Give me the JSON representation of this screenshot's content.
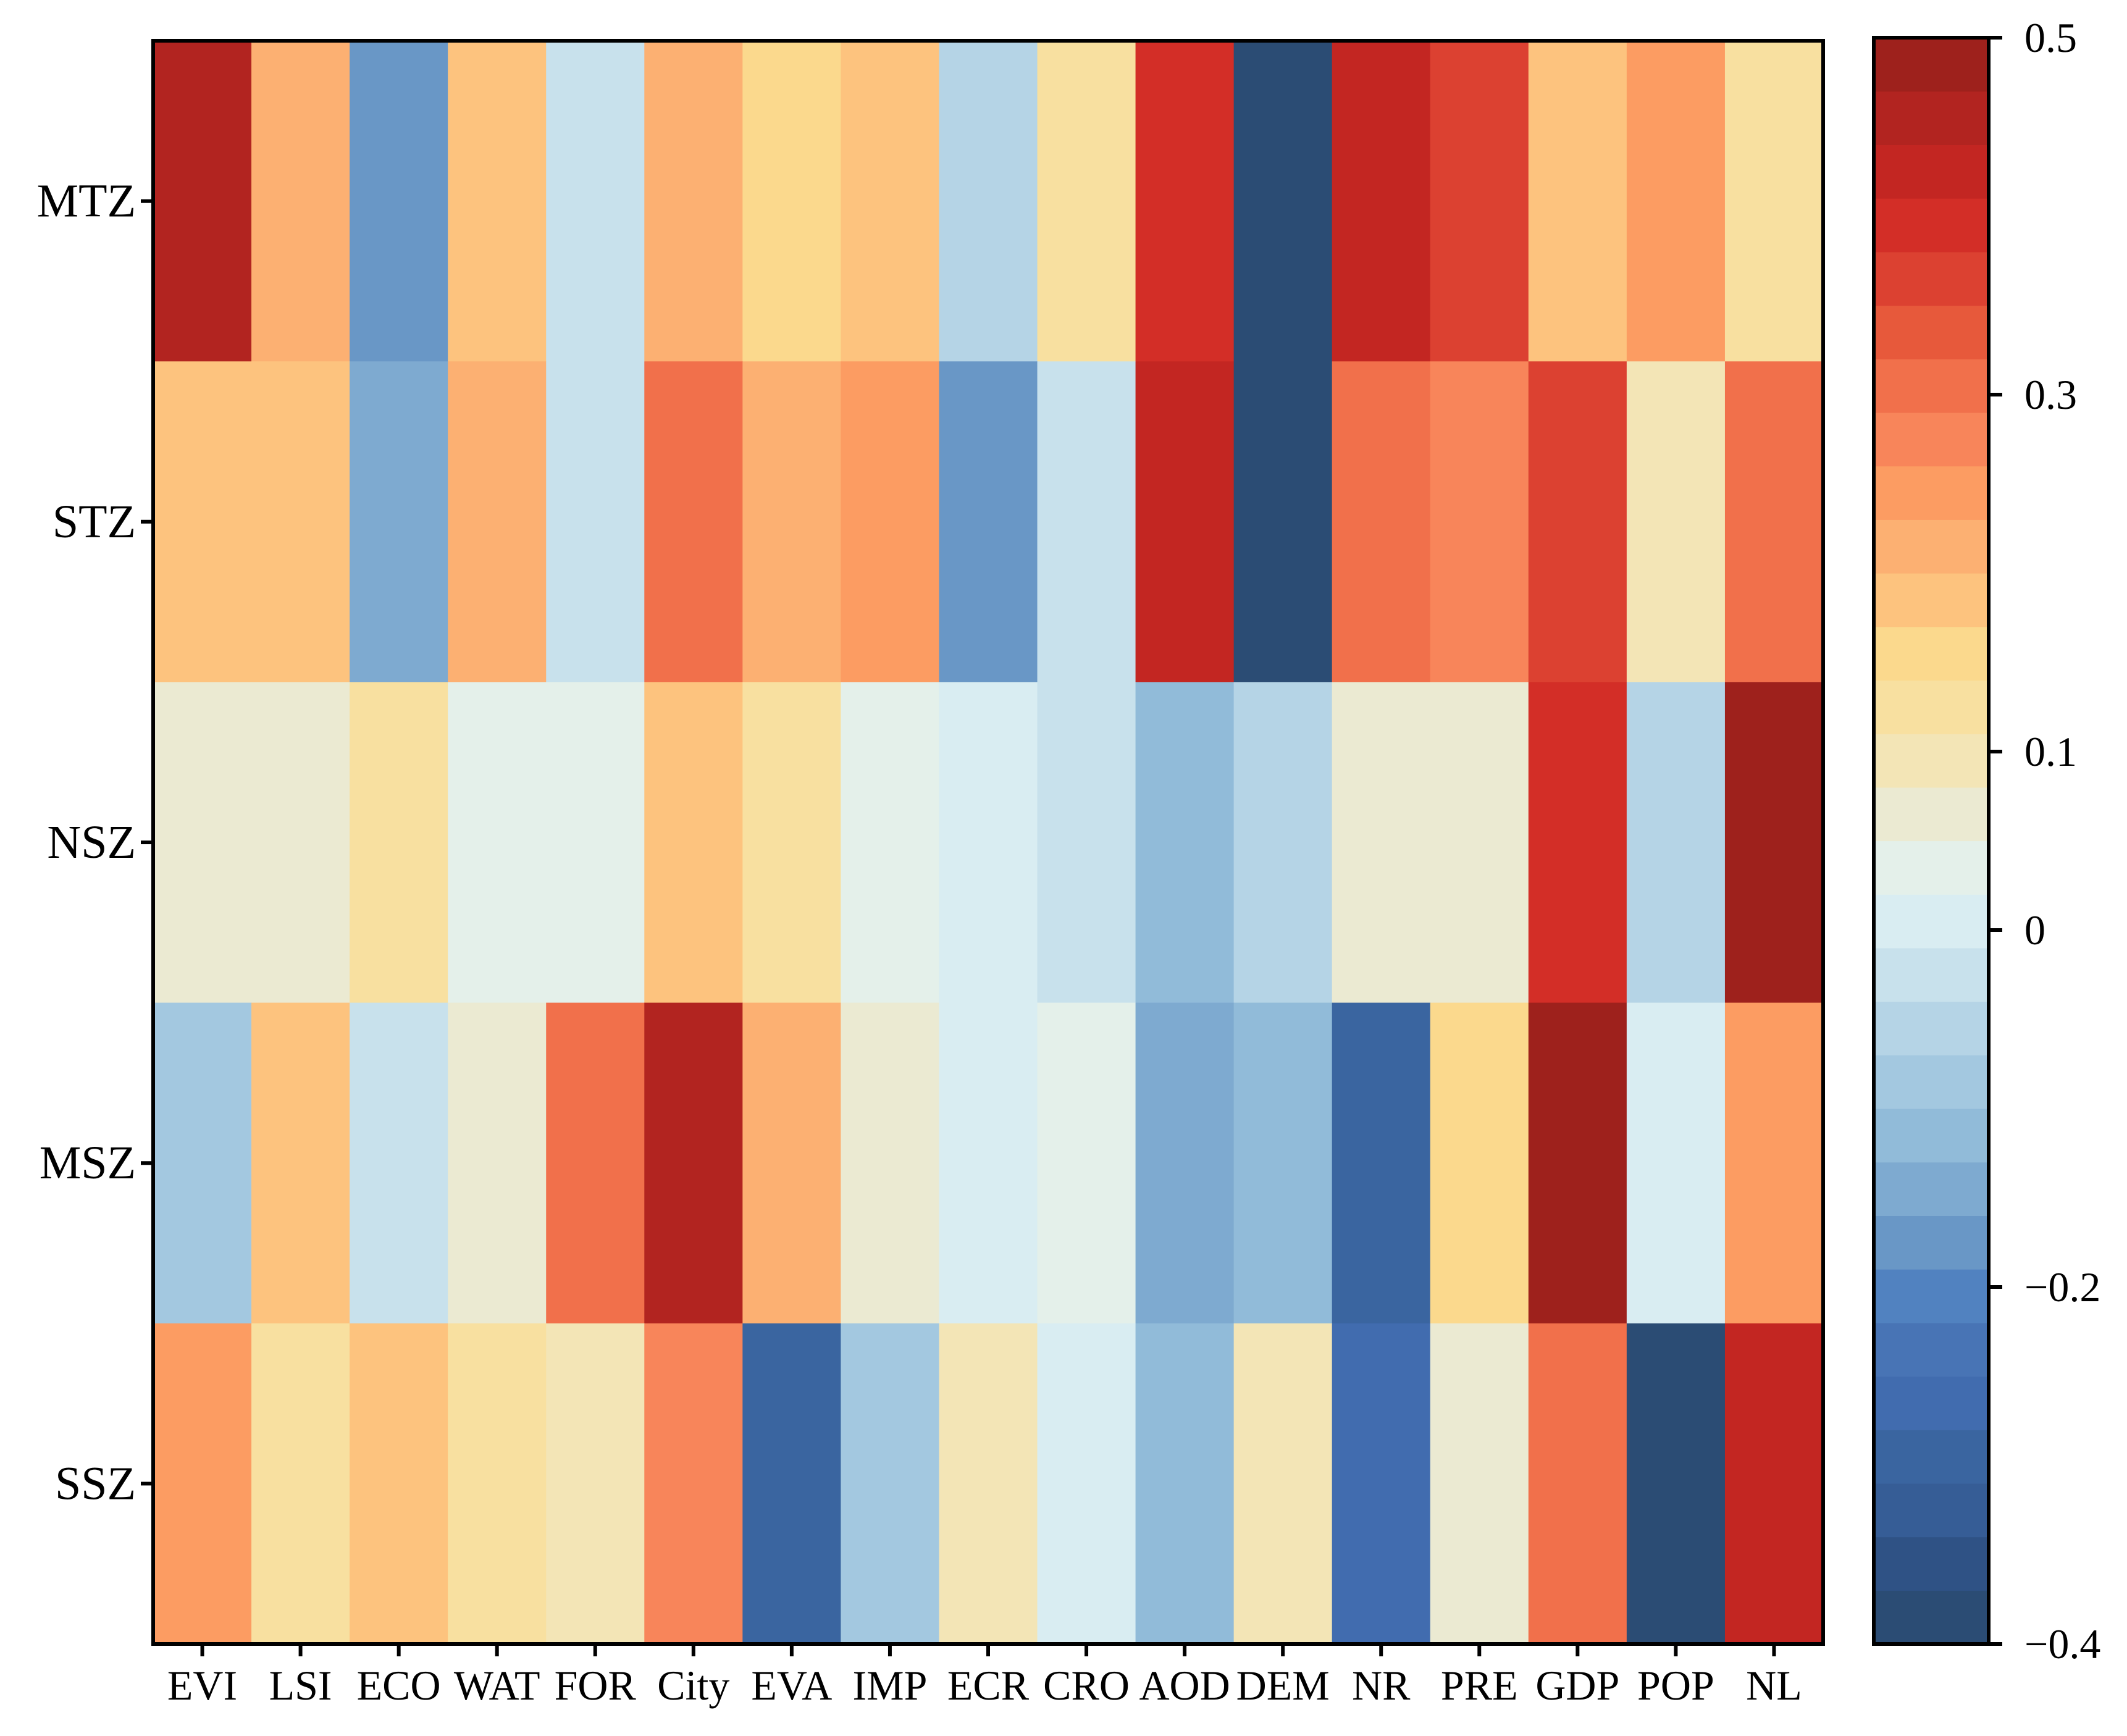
{
  "chart_data": {
    "type": "heatmap",
    "title": "",
    "xlabel": "",
    "ylabel": "",
    "x_categories": [
      "EVI",
      "LSI",
      "ECO",
      "WAT",
      "FOR",
      "City",
      "EVA",
      "IMP",
      "ECR",
      "CRO",
      "AOD",
      "DEM",
      "NR",
      "PRE",
      "GDP",
      "POP",
      "NL"
    ],
    "y_categories": [
      "MTZ",
      "STZ",
      "NSZ",
      "MSZ",
      "SSZ"
    ],
    "values": [
      [
        0.45,
        0.2,
        -0.17,
        0.17,
        -0.03,
        0.2,
        0.15,
        0.17,
        -0.06,
        0.11,
        0.39,
        -0.38,
        0.43,
        0.36,
        0.17,
        0.23,
        0.11
      ],
      [
        0.17,
        0.17,
        -0.14,
        0.2,
        -0.03,
        0.29,
        0.2,
        0.24,
        -0.17,
        -0.03,
        0.41,
        -0.38,
        0.29,
        0.26,
        0.37,
        0.08,
        0.29
      ],
      [
        0.06,
        0.07,
        0.11,
        0.03,
        0.03,
        0.17,
        0.11,
        0.03,
        0.01,
        -0.04,
        -0.12,
        -0.06,
        0.06,
        0.06,
        0.39,
        -0.07,
        0.49
      ],
      [
        -0.09,
        0.17,
        -0.03,
        0.06,
        0.29,
        0.45,
        0.2,
        0.06,
        0.01,
        0.03,
        -0.14,
        -0.12,
        -0.31,
        0.14,
        0.49,
        0.01,
        0.23
      ],
      [
        0.23,
        0.11,
        0.17,
        0.11,
        0.1,
        0.26,
        -0.31,
        -0.09,
        0.1,
        0.01,
        -0.12,
        0.1,
        -0.27,
        0.06,
        0.29,
        -0.38,
        0.43
      ]
    ],
    "colorbar": {
      "min": -0.4,
      "max": 0.5,
      "ticks": [
        0.5,
        0.3,
        0.1,
        0,
        -0.2,
        -0.4
      ],
      "tick_labels": [
        "0.5",
        "0.3",
        "0.1",
        "0",
        "−0.2",
        "−0.4"
      ],
      "colors": [
        "#2b4c74",
        "#2f5285",
        "#365d96",
        "#3a65a0",
        "#416caf",
        "#4874b5",
        "#5182c0",
        "#6997c6",
        "#7eaad0",
        "#91bbd9",
        "#a3c8e0",
        "#b5d4e6",
        "#c8e1ec",
        "#d9edf2",
        "#e4f0ea",
        "#ebead2",
        "#f3e5b6",
        "#f8e0a0",
        "#fbd98d",
        "#fdc37e",
        "#fcb072",
        "#fc9c62",
        "#f8855a",
        "#f1704b",
        "#e7593b",
        "#dc4131",
        "#d32e27",
        "#c32622",
        "#b22420",
        "#9e211c"
      ]
    }
  }
}
